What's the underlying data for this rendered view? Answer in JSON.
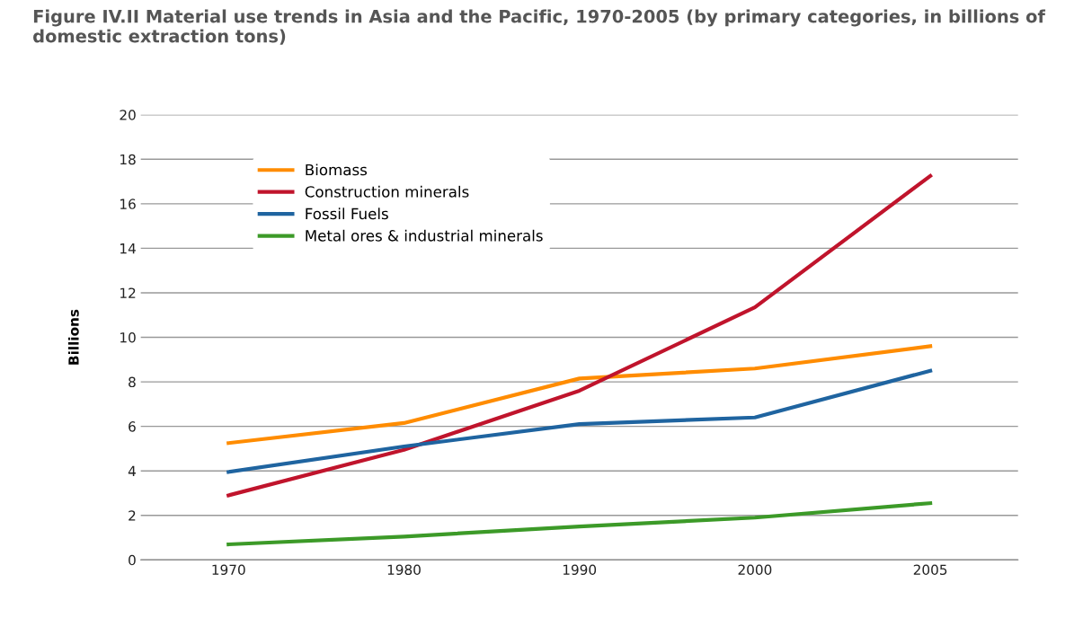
{
  "chart_data": {
    "type": "line",
    "title": "Figure IV.II Material use trends in Asia and the Pacific, 1970-2005 (by primary categories, in billions of domestic extraction tons)",
    "ylabel": "Billions",
    "categories": [
      "1970",
      "1980",
      "1990",
      "2000",
      "2005"
    ],
    "series": [
      {
        "name": "Biomass",
        "color": "#ff8c00",
        "values": [
          5.25,
          6.15,
          8.15,
          8.6,
          9.6
        ]
      },
      {
        "name": "Construction minerals",
        "color": "#c0142c",
        "values": [
          2.9,
          4.95,
          7.6,
          11.35,
          17.25
        ]
      },
      {
        "name": "Fossil Fuels",
        "color": "#1f64a0",
        "values": [
          3.95,
          5.1,
          6.1,
          6.4,
          8.5
        ]
      },
      {
        "name": "Metal ores & industrial minerals",
        "color": "#3c9a28",
        "values": [
          0.7,
          1.05,
          1.5,
          1.9,
          2.55
        ]
      }
    ],
    "ylim": [
      0,
      20
    ],
    "yticks": [
      0,
      2,
      4,
      6,
      8,
      10,
      12,
      14,
      16,
      18,
      20
    ],
    "grid": "y",
    "legend": "top left",
    "marker": "none",
    "line_style": "solid"
  }
}
